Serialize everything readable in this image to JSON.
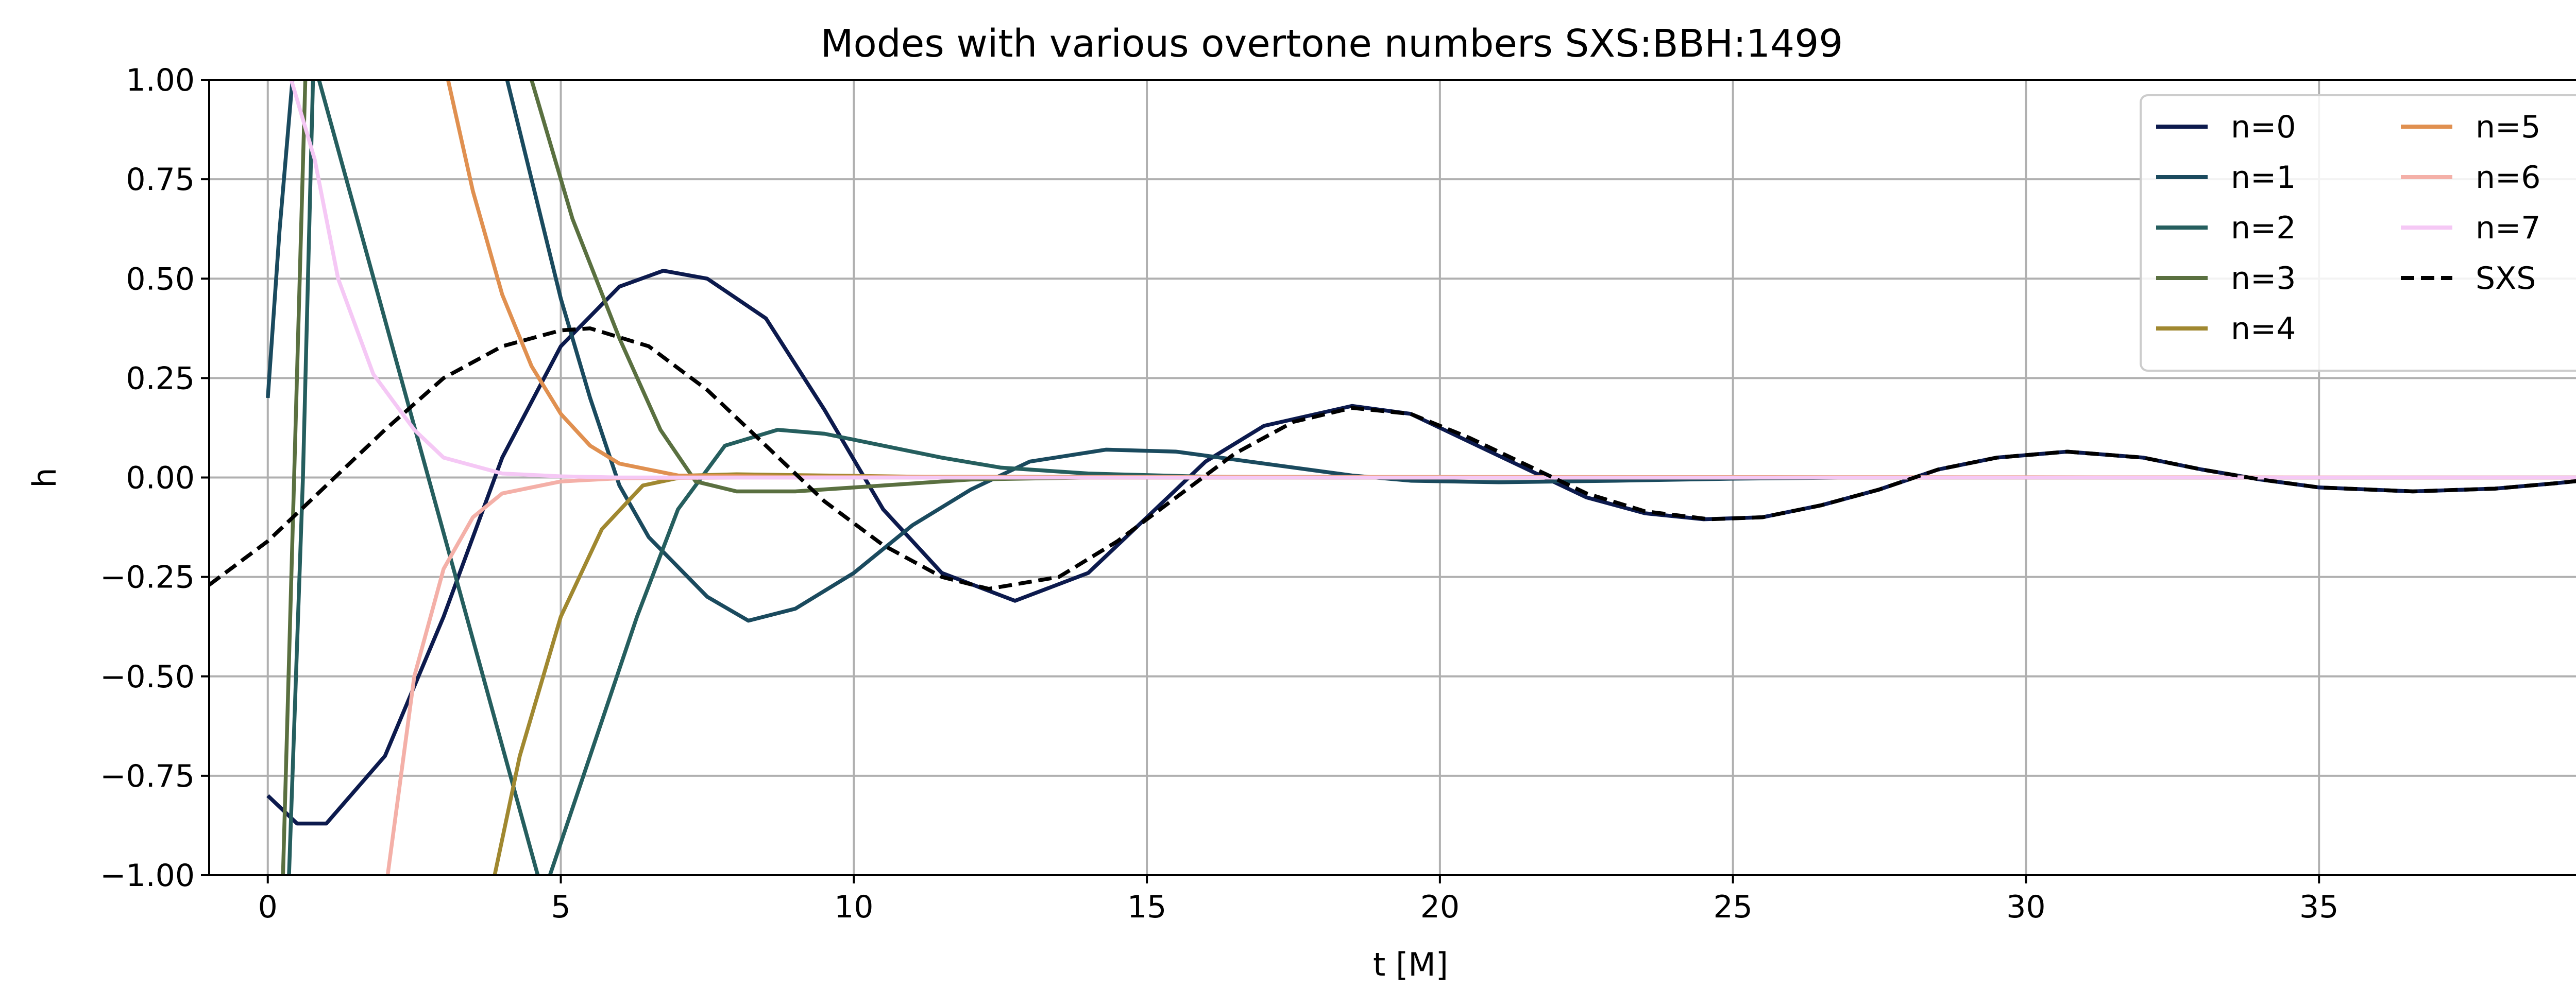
{
  "chart_data": {
    "type": "line",
    "title": "Modes with various overtone numbers SXS:BBH:1499",
    "xlabel": "t [M]",
    "ylabel": "h",
    "xlim": [
      -1,
      40
    ],
    "ylim": [
      -1,
      1
    ],
    "xticks": [
      0,
      5,
      10,
      15,
      20,
      25,
      30,
      35,
      40
    ],
    "xtick_labels": [
      "0",
      "5",
      "10",
      "15",
      "20",
      "25",
      "30",
      "35",
      "40"
    ],
    "yticks": [
      -1,
      -0.75,
      -0.5,
      -0.25,
      0,
      0.25,
      0.5,
      0.75,
      1
    ],
    "ytick_labels": [
      "−1.00",
      "−0.75",
      "−0.50",
      "−0.25",
      "0.00",
      "0.25",
      "0.50",
      "0.75",
      "1.00"
    ],
    "grid": true,
    "legend": {
      "placement": "upper-right",
      "columns": 2
    },
    "series": [
      {
        "name": "n=0",
        "color": "#0c1a4d",
        "dash": "solid",
        "points": [
          [
            0,
            -0.8
          ],
          [
            0.5,
            -0.87
          ],
          [
            1.0,
            -0.87
          ],
          [
            2,
            -0.7
          ],
          [
            3,
            -0.35
          ],
          [
            4,
            0.05
          ],
          [
            5,
            0.33
          ],
          [
            6,
            0.48
          ],
          [
            6.75,
            0.52
          ],
          [
            7.5,
            0.5
          ],
          [
            8.5,
            0.4
          ],
          [
            9.5,
            0.17
          ],
          [
            10.5,
            -0.08
          ],
          [
            11.5,
            -0.24
          ],
          [
            12.75,
            -0.31
          ],
          [
            14,
            -0.24
          ],
          [
            15,
            -0.1
          ],
          [
            16,
            0.04
          ],
          [
            17,
            0.13
          ],
          [
            18.5,
            0.18
          ],
          [
            19.5,
            0.16
          ],
          [
            20.5,
            0.09
          ],
          [
            21.5,
            0.02
          ],
          [
            22.5,
            -0.05
          ],
          [
            23.5,
            -0.09
          ],
          [
            24.5,
            -0.105
          ],
          [
            25.5,
            -0.1
          ],
          [
            26.5,
            -0.07
          ],
          [
            27.5,
            -0.03
          ],
          [
            28.5,
            0.02
          ],
          [
            29.5,
            0.05
          ],
          [
            30.7,
            0.065
          ],
          [
            32,
            0.05
          ],
          [
            33,
            0.02
          ],
          [
            34,
            -0.005
          ],
          [
            35,
            -0.025
          ],
          [
            36.6,
            -0.035
          ],
          [
            38,
            -0.028
          ],
          [
            39,
            -0.015
          ],
          [
            40,
            0
          ]
        ]
      },
      {
        "name": "n=1",
        "color": "#1a4a5e",
        "dash": "solid",
        "points": [
          [
            0,
            0.2
          ],
          [
            0.2,
            0.62
          ],
          [
            0.45,
            1.05
          ],
          [
            4,
            1.05
          ],
          [
            4.5,
            0.75
          ],
          [
            5,
            0.45
          ],
          [
            5.5,
            0.2
          ],
          [
            6,
            -0.02
          ],
          [
            6.5,
            -0.15
          ],
          [
            7.5,
            -0.3
          ],
          [
            8.2,
            -0.36
          ],
          [
            9,
            -0.33
          ],
          [
            10,
            -0.24
          ],
          [
            11,
            -0.12
          ],
          [
            12,
            -0.03
          ],
          [
            13,
            0.04
          ],
          [
            14.3,
            0.07
          ],
          [
            15.5,
            0.065
          ],
          [
            16.5,
            0.045
          ],
          [
            17.5,
            0.025
          ],
          [
            18.5,
            0.005
          ],
          [
            19.5,
            -0.008
          ],
          [
            21,
            -0.012
          ],
          [
            23,
            -0.008
          ],
          [
            25,
            -0.003
          ],
          [
            27,
            0
          ],
          [
            40,
            0
          ]
        ]
      },
      {
        "name": "n=2",
        "color": "#255e5e",
        "dash": "solid",
        "points": [
          [
            0.35,
            -1.05
          ],
          [
            0.6,
            0
          ],
          [
            0.78,
            1.05
          ],
          [
            4.7,
            -1.05
          ],
          [
            5.5,
            -0.7
          ],
          [
            6.3,
            -0.35
          ],
          [
            7,
            -0.08
          ],
          [
            7.8,
            0.08
          ],
          [
            8.7,
            0.12
          ],
          [
            9.5,
            0.11
          ],
          [
            10.5,
            0.08
          ],
          [
            11.5,
            0.05
          ],
          [
            12.5,
            0.025
          ],
          [
            14,
            0.01
          ],
          [
            16,
            0.002
          ],
          [
            18,
            0
          ],
          [
            40,
            0
          ]
        ]
      },
      {
        "name": "n=3",
        "color": "#5a7040",
        "dash": "solid",
        "points": [
          [
            0.25,
            -1.05
          ],
          [
            0.45,
            0
          ],
          [
            0.65,
            1.05
          ],
          [
            4.4,
            1.05
          ],
          [
            5.2,
            0.65
          ],
          [
            6,
            0.35
          ],
          [
            6.7,
            0.12
          ],
          [
            7.3,
            -0.01
          ],
          [
            8,
            -0.035
          ],
          [
            9,
            -0.035
          ],
          [
            10.5,
            -0.02
          ],
          [
            12,
            -0.005
          ],
          [
            14,
            0
          ],
          [
            40,
            0
          ]
        ]
      },
      {
        "name": "n=4",
        "color": "#a08830",
        "dash": "solid",
        "points": [
          [
            3.8,
            -1.05
          ],
          [
            4.3,
            -0.7
          ],
          [
            5,
            -0.35
          ],
          [
            5.7,
            -0.13
          ],
          [
            6.4,
            -0.02
          ],
          [
            7.2,
            0.005
          ],
          [
            8,
            0.008
          ],
          [
            9.5,
            0.005
          ],
          [
            12,
            0
          ],
          [
            40,
            0
          ]
        ]
      },
      {
        "name": "n=5",
        "color": "#e09050",
        "dash": "solid",
        "points": [
          [
            3,
            1.05
          ],
          [
            3.5,
            0.72
          ],
          [
            4,
            0.46
          ],
          [
            4.5,
            0.28
          ],
          [
            5,
            0.16
          ],
          [
            5.5,
            0.08
          ],
          [
            6,
            0.035
          ],
          [
            7,
            0.005
          ],
          [
            9,
            0.002
          ],
          [
            40,
            0
          ]
        ]
      },
      {
        "name": "n=6",
        "color": "#f4b0a8",
        "dash": "solid",
        "points": [
          [
            2,
            -1.05
          ],
          [
            2.5,
            -0.5
          ],
          [
            3,
            -0.23
          ],
          [
            3.5,
            -0.1
          ],
          [
            4,
            -0.04
          ],
          [
            5,
            -0.01
          ],
          [
            6,
            -0.002
          ],
          [
            8,
            0
          ],
          [
            40,
            0
          ]
        ]
      },
      {
        "name": "n=7",
        "color": "#f5c8f5",
        "dash": "solid",
        "points": [
          [
            0.4,
            1.0
          ],
          [
            0.8,
            0.8
          ],
          [
            1.2,
            0.5
          ],
          [
            1.8,
            0.26
          ],
          [
            2.5,
            0.12
          ],
          [
            3,
            0.05
          ],
          [
            4,
            0.01
          ],
          [
            5,
            0.003
          ],
          [
            6,
            0
          ],
          [
            40,
            0
          ]
        ]
      },
      {
        "name": "SXS",
        "color": "#000000",
        "dash": "dashed",
        "points": [
          [
            -1,
            -0.27
          ],
          [
            0,
            -0.16
          ],
          [
            1,
            -0.02
          ],
          [
            2,
            0.12
          ],
          [
            3,
            0.25
          ],
          [
            4,
            0.33
          ],
          [
            5,
            0.37
          ],
          [
            5.5,
            0.375
          ],
          [
            6.5,
            0.33
          ],
          [
            7.5,
            0.22
          ],
          [
            8.5,
            0.08
          ],
          [
            9.5,
            -0.06
          ],
          [
            10.5,
            -0.17
          ],
          [
            11.5,
            -0.25
          ],
          [
            12.3,
            -0.28
          ],
          [
            13.5,
            -0.25
          ],
          [
            14.5,
            -0.16
          ],
          [
            15.5,
            -0.05
          ],
          [
            16.5,
            0.06
          ],
          [
            17.5,
            0.14
          ],
          [
            18.5,
            0.175
          ],
          [
            19.5,
            0.16
          ],
          [
            20.5,
            0.1
          ],
          [
            21.5,
            0.03
          ],
          [
            22.5,
            -0.04
          ],
          [
            23.5,
            -0.085
          ],
          [
            24.6,
            -0.105
          ],
          [
            25.5,
            -0.1
          ],
          [
            26.5,
            -0.07
          ],
          [
            27.5,
            -0.03
          ],
          [
            28.5,
            0.02
          ],
          [
            29.5,
            0.05
          ],
          [
            30.7,
            0.065
          ],
          [
            32,
            0.05
          ],
          [
            33,
            0.02
          ],
          [
            34,
            -0.005
          ],
          [
            35,
            -0.025
          ],
          [
            36.6,
            -0.035
          ],
          [
            38,
            -0.028
          ],
          [
            39,
            -0.015
          ],
          [
            40,
            0
          ]
        ]
      }
    ]
  }
}
